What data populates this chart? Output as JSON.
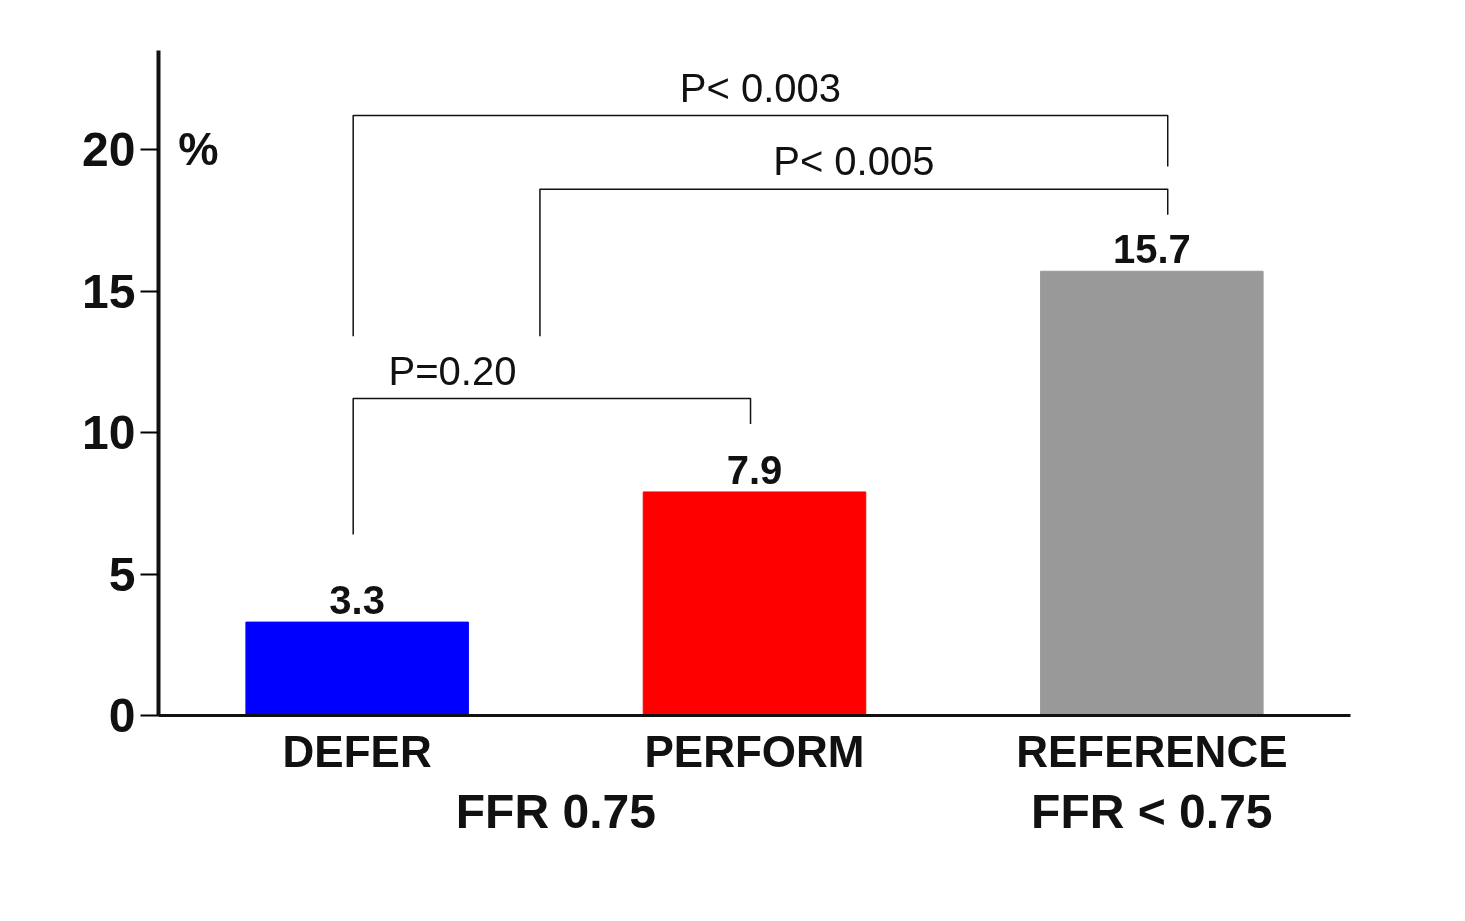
{
  "chart_data": {
    "type": "bar",
    "ylabel": "%",
    "categories": [
      "DEFER",
      "PERFORM",
      "REFERENCE"
    ],
    "values": [
      3.3,
      7.9,
      15.7
    ],
    "colors": [
      "#0000ff",
      "#ff0000",
      "#999999"
    ],
    "ylim": [
      0,
      23.5
    ],
    "yticks": [
      0,
      5,
      10,
      15,
      20
    ],
    "data_labels": true,
    "grid": false,
    "annotations": [
      "P< 0.003",
      "P< 0.005",
      "P=0.20",
      "FFR 0.75",
      "FFR < 0.75"
    ]
  }
}
